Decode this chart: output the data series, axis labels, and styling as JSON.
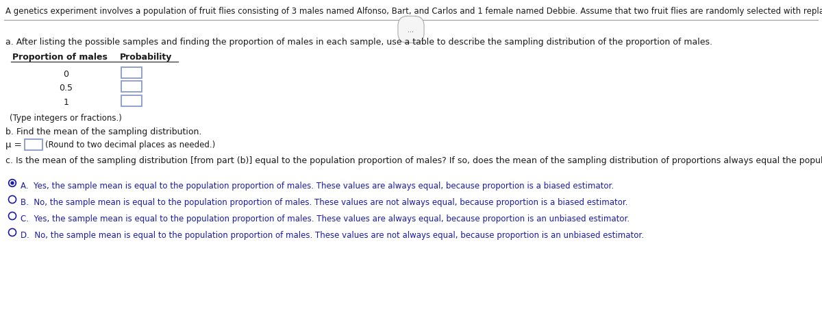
{
  "title_text": "A genetics experiment involves a population of fruit flies consisting of 3 males named Alfonso, Bart, and Carlos and 1 female named Debbie. Assume that two fruit flies are randomly selected with replacement.",
  "part_a_label": "a. After listing the possible samples and finding the proportion of males in each sample, use a table to describe the sampling distribution of the proportion of males.",
  "col1_header": "Proportion of males",
  "col2_header": "Probability",
  "proportions": [
    "0",
    "0.5",
    "1"
  ],
  "type_note": "(Type integers or fractions.)",
  "part_b_label": "b. Find the mean of the sampling distribution.",
  "mu_label": "μ =",
  "mu_note": "(Round to two decimal places as needed.)",
  "part_c_label": "c. Is the mean of the sampling distribution [from part (b)] equal to the population proportion of males? If so, does the mean of the sampling distribution of proportions always equal the population proportion?",
  "options": [
    "A.  Yes, the sample mean is equal to the population proportion of males. These values are always equal, because proportion is a biased estimator.",
    "B.  No, the sample mean is equal to the population proportion of males. These values are not always equal, because proportion is a biased estimator.",
    "C.  Yes, the sample mean is equal to the population proportion of males. These values are always equal, because proportion is an unbiased estimator.",
    "D.  No, the sample mean is equal to the population proportion of males. These values are not always equal, because proportion is an unbiased estimator."
  ],
  "selected_option": 0,
  "bg_color": "#ffffff",
  "text_color": "#1a1a1a",
  "blue_text": "#1a1aaa",
  "box_edge_color": "#8899cc",
  "sep_color": "#999999",
  "title_fontsize": 8.5,
  "body_fontsize": 9.0,
  "small_fontsize": 8.5
}
